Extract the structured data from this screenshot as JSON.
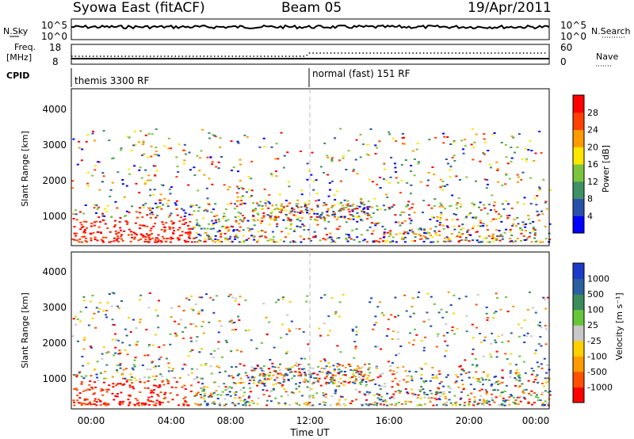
{
  "header": {
    "title": "Syowa East (fitACF)",
    "beam": "Beam 05",
    "date": "19/Apr/2011"
  },
  "top_panels": {
    "nsky": {
      "label": "N.Sky",
      "ticks": [
        "10^5",
        "10^0"
      ]
    },
    "nsearch": {
      "label": "N.Search",
      "ticks": [
        "10^5",
        "10^0"
      ]
    },
    "freq": {
      "label_lines": [
        "Freq.",
        "[MHz]"
      ],
      "ticks": [
        "18",
        "8"
      ]
    },
    "nave": {
      "label": "Nave",
      "ticks": [
        "60",
        "0"
      ]
    },
    "cpid": {
      "label": "CPID",
      "segments": [
        "themis 3300 RF",
        "normal (fast) 151 RF"
      ]
    }
  },
  "chart_data": [
    {
      "type": "heatmap",
      "name": "power",
      "ylabel": "Slant Range [km]",
      "xlim": [
        0,
        24
      ],
      "ylim": [
        180,
        4600
      ],
      "yticks": [
        "1000",
        "2000",
        "3000",
        "4000"
      ],
      "colorbar": {
        "label": "Power [dB]",
        "ticks": [
          "4",
          "8",
          "12",
          "16",
          "20",
          "24",
          "28"
        ],
        "colors": [
          "#0000ff",
          "#2a4faa",
          "#3e9164",
          "#7cc43c",
          "#ffe600",
          "#ff9a00",
          "#ff4000",
          "#ff0000"
        ]
      }
    },
    {
      "type": "heatmap",
      "name": "velocity",
      "ylabel": "Slant Range [km]",
      "xlabel": "Time UT",
      "xlim": [
        0,
        24
      ],
      "ylim": [
        180,
        4600
      ],
      "yticks": [
        "1000",
        "2000",
        "3000",
        "4000"
      ],
      "xticks": [
        "00:00",
        "04:00",
        "08:00",
        "12:00",
        "16:00",
        "20:00",
        "00:00"
      ],
      "colorbar": {
        "label": "Velocity [m s⁻¹]",
        "ticks": [
          "1000",
          "500",
          "100",
          "25",
          "-25",
          "-100",
          "-500",
          "-1000"
        ],
        "colors": [
          "#1a3cc8",
          "#2a5fa0",
          "#3a8c5a",
          "#66c63a",
          "#c8c8c8",
          "#ffd000",
          "#ff9a00",
          "#ff5000",
          "#ff0000"
        ]
      }
    }
  ]
}
